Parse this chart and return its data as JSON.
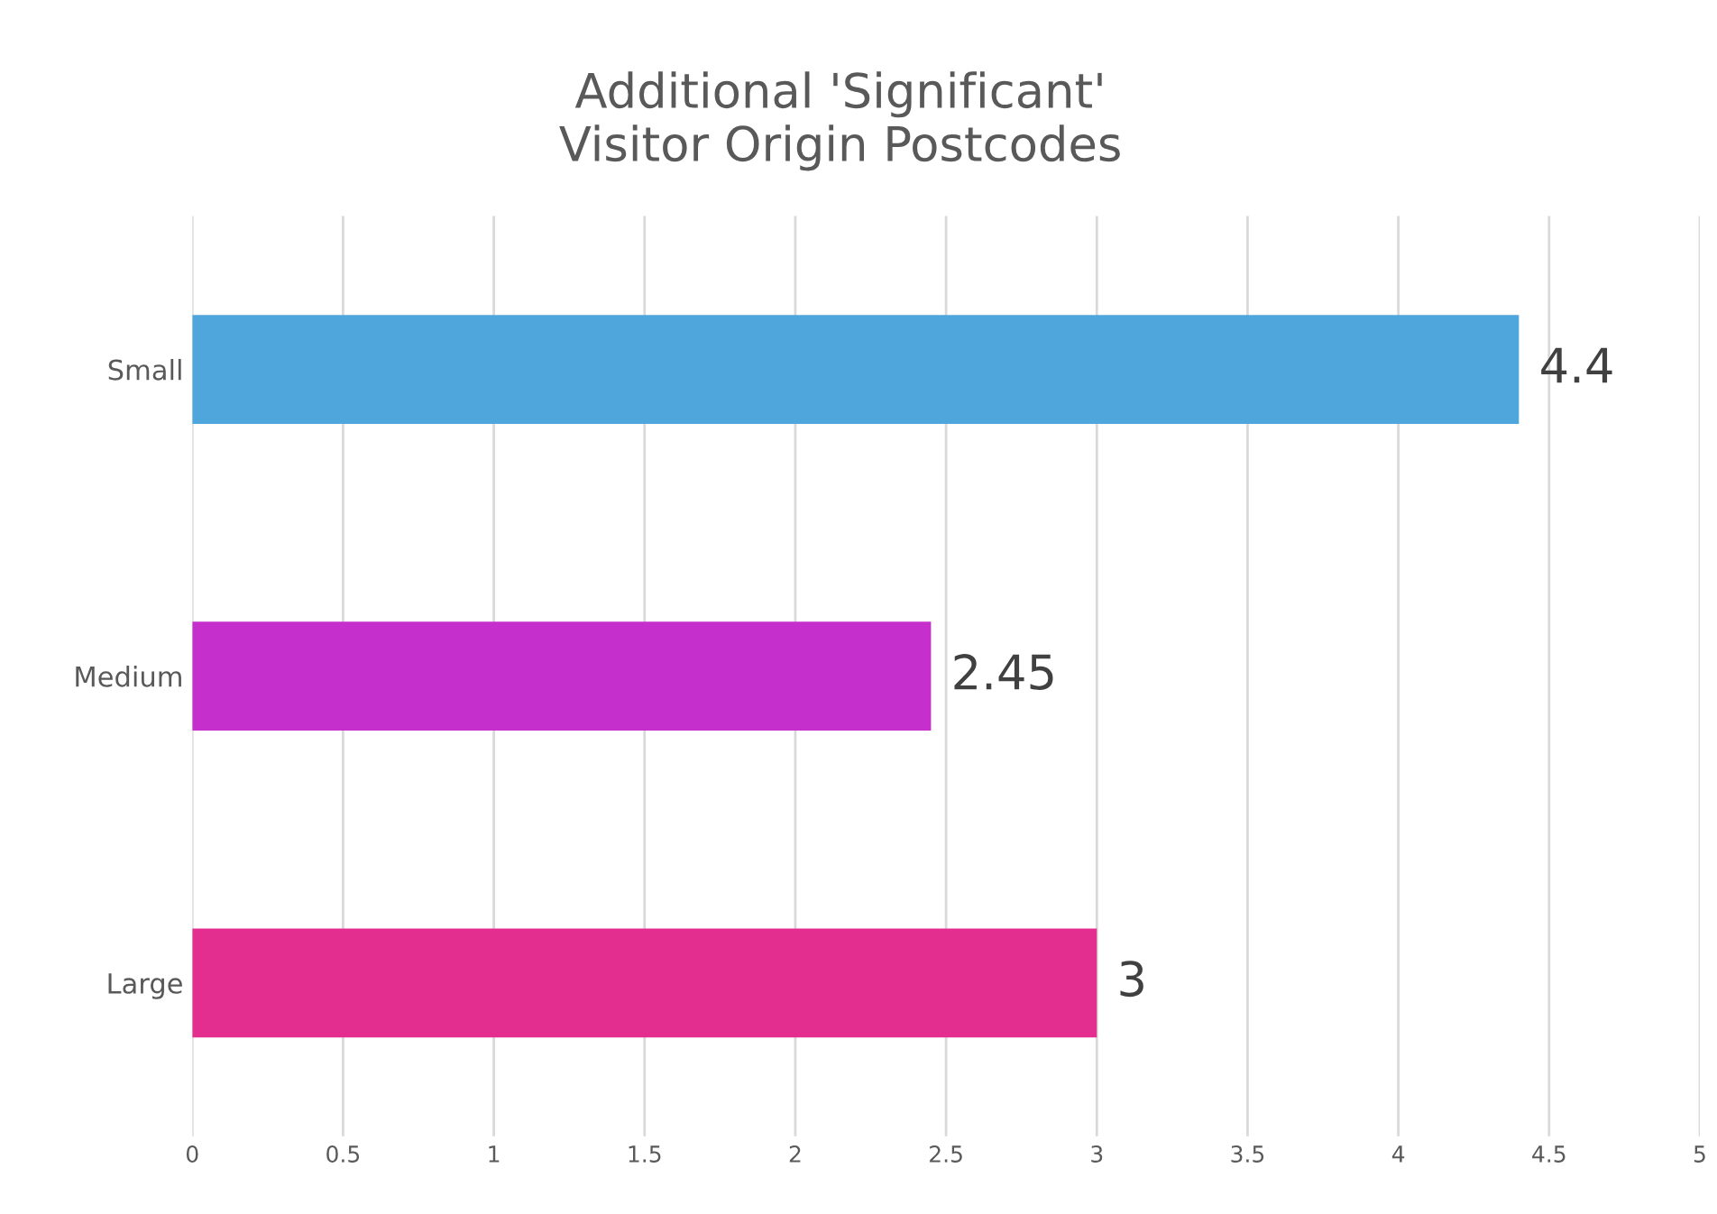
{
  "chart_data": {
    "type": "bar",
    "orientation": "horizontal",
    "title": "Additional 'Significant'\nVisitor Origin Postcodes",
    "categories": [
      "Small",
      "Medium",
      "Large"
    ],
    "values": [
      4.4,
      2.45,
      3
    ],
    "colors": [
      "#4ea6dc",
      "#c530cc",
      "#e32e8f"
    ],
    "xlim": [
      0,
      5
    ],
    "xticks": [
      0,
      0.5,
      1,
      1.5,
      2,
      2.5,
      3,
      3.5,
      4,
      4.5,
      5
    ],
    "grid": "x",
    "data_labels": true
  }
}
